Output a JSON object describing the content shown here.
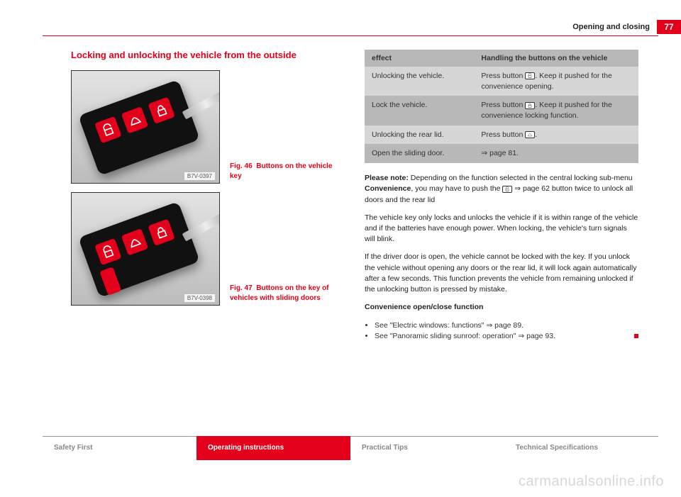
{
  "header": {
    "section": "Opening and closing",
    "page_number": "77"
  },
  "left": {
    "title": "Locking and unlocking the vehicle from the outside",
    "fig1": {
      "label": "Fig. 46",
      "caption": "Buttons on the vehicle key",
      "code": "B7V-0397"
    },
    "fig2": {
      "label": "Fig. 47",
      "caption": "Buttons on the key of vehicles with sliding doors",
      "code": "B7V-0398"
    }
  },
  "right": {
    "table": {
      "header_left": "effect",
      "header_right": "Handling the buttons on the vehicle",
      "rows": [
        {
          "effect": "Unlocking the vehicle.",
          "handling_pre": "Press button ",
          "handling_post": ". Keep it pushed for the convenience opening.",
          "icon": "unlock",
          "shade": "light"
        },
        {
          "effect": "Lock the vehicle.",
          "handling_pre": "Press button ",
          "handling_post": ". Keep it pushed for the convenience locking function.",
          "icon": "lock",
          "shade": "dark"
        },
        {
          "effect": "Unlocking the rear lid.",
          "handling_pre": "Press button ",
          "handling_post": ".",
          "icon": "rear",
          "shade": "light"
        },
        {
          "effect": "Open the sliding door.",
          "handling_pre": "⇒ page 81.",
          "handling_post": "",
          "icon": "",
          "shade": "dark"
        }
      ]
    },
    "note_pre": "Please note:",
    "note_body1": " Depending on the function selected in the central locking sub-menu ",
    "note_bold": "Convenience",
    "note_body2": ", you may have to push the ",
    "note_body3": " ⇒ page 62 button twice to unlock all doors and the rear lid",
    "para2": "The vehicle key only locks and unlocks the vehicle if it is within range of the vehicle and if the batteries have enough power. When locking, the vehicle's turn signals will blink.",
    "para3": "If the driver door is open, the vehicle cannot be locked with the key. If you unlock the vehicle without opening any doors or the rear lid, it will lock again automatically after a few seconds. This function prevents the vehicle from remaining unlocked if the unlocking button is pressed by mistake.",
    "subhead": "Convenience open/close function",
    "bullets": [
      "See \"Electric windows: functions\" ⇒ page 89.",
      "See \"Panoramic sliding sunroof: operation\" ⇒ page 93."
    ]
  },
  "footer": {
    "tabs": [
      "Safety First",
      "Operating instructions",
      "Practical Tips",
      "Technical Specifications"
    ],
    "active_index": 1
  },
  "watermark": "carmanualsonline.info",
  "colors": {
    "brand": "#e2001a"
  }
}
